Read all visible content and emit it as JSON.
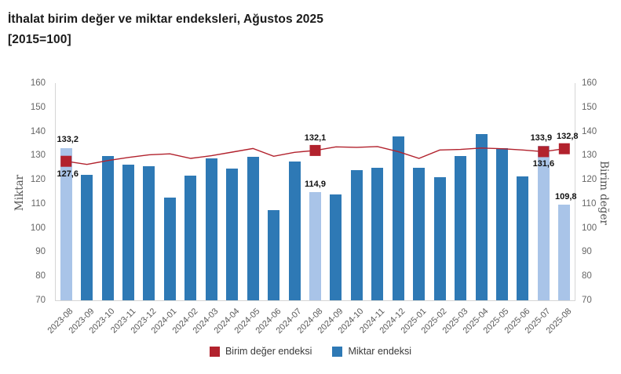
{
  "header": {
    "title_line1": "İthalat birim değer ve miktar endeksleri, Ağustos 2025",
    "title_line2": "[2015=100]"
  },
  "chart_data": {
    "type": "bar",
    "subtype": "column-and-line combo, dual value axes",
    "categories": [
      "2023-08",
      "2023-09",
      "2023-10",
      "2023-11",
      "2023-12",
      "2024-01",
      "2024-02",
      "2024-03",
      "2024-04",
      "2024-05",
      "2024-06",
      "2024-07",
      "2024-08",
      "2024-09",
      "2024-10",
      "2024-11",
      "2024-12",
      "2025-01",
      "2025-02",
      "2025-03",
      "2025-04",
      "2025-05",
      "2025-06",
      "2025-07",
      "2025-08"
    ],
    "series": [
      {
        "name": "Birim değer endeksi",
        "type": "line",
        "axis": "right",
        "color": "#b2222d",
        "values": [
          127.6,
          126.3,
          127.9,
          129.2,
          130.3,
          130.7,
          128.8,
          129.9,
          131.4,
          132.9,
          129.7,
          131.3,
          132.1,
          133.6,
          133.4,
          133.7,
          131.6,
          128.8,
          132.3,
          132.5,
          133.1,
          132.8,
          132.3,
          131.6,
          132.8
        ]
      },
      {
        "name": "Miktar endeksi",
        "type": "bar",
        "axis": "left",
        "color": "#2e79b5",
        "highlight_color": "#a9c4e8",
        "values": [
          133.2,
          122.0,
          129.7,
          126.1,
          125.7,
          112.5,
          121.6,
          128.8,
          124.5,
          129.4,
          107.3,
          127.5,
          114.9,
          113.8,
          123.9,
          125.0,
          137.9,
          124.9,
          121.1,
          129.9,
          138.9,
          133.2,
          121.2,
          133.9,
          109.8
        ]
      }
    ],
    "highlighted_months": [
      "2023-08",
      "2024-08",
      "2025-07",
      "2025-08"
    ],
    "labeled_points": [
      {
        "month": "2023-08",
        "series": "Miktar endeksi",
        "label": "133,2",
        "position": "above",
        "dx": 2
      },
      {
        "month": "2023-08",
        "series": "Birim değer endeksi",
        "label": "127,6",
        "position": "below",
        "dx": 2
      },
      {
        "month": "2024-08",
        "series": "Birim değer endeksi",
        "label": "132,1",
        "position": "above",
        "dx": 0
      },
      {
        "month": "2024-08",
        "series": "Miktar endeksi",
        "label": "114,9",
        "position": "above",
        "dx": 0
      },
      {
        "month": "2025-07",
        "series": "Miktar endeksi",
        "label": "133,9",
        "position": "above",
        "dx": -3
      },
      {
        "month": "2025-07",
        "series": "Birim değer endeksi",
        "label": "131,6",
        "position": "below",
        "dx": 0
      },
      {
        "month": "2025-08",
        "series": "Birim değer endeksi",
        "label": "132,8",
        "position": "above",
        "dx": 4
      },
      {
        "month": "2025-08",
        "series": "Miktar endeksi",
        "label": "109,8",
        "position": "above",
        "dx": 2
      }
    ],
    "left_axis": {
      "title": "Miktar",
      "ticks": [
        160,
        150,
        140,
        130,
        120,
        110,
        100,
        90,
        80,
        70
      ]
    },
    "right_axis": {
      "title": "Birim değer",
      "ticks": [
        160,
        150,
        140,
        130,
        120,
        110,
        100,
        90,
        80,
        70
      ]
    },
    "ylim": [
      70,
      160
    ],
    "grid": false,
    "legend_position": "bottom-center",
    "legend": [
      {
        "label": "Birim değer endeksi",
        "color": "#b2222d"
      },
      {
        "label": "Miktar endeksi",
        "color": "#2e79b5"
      }
    ]
  }
}
